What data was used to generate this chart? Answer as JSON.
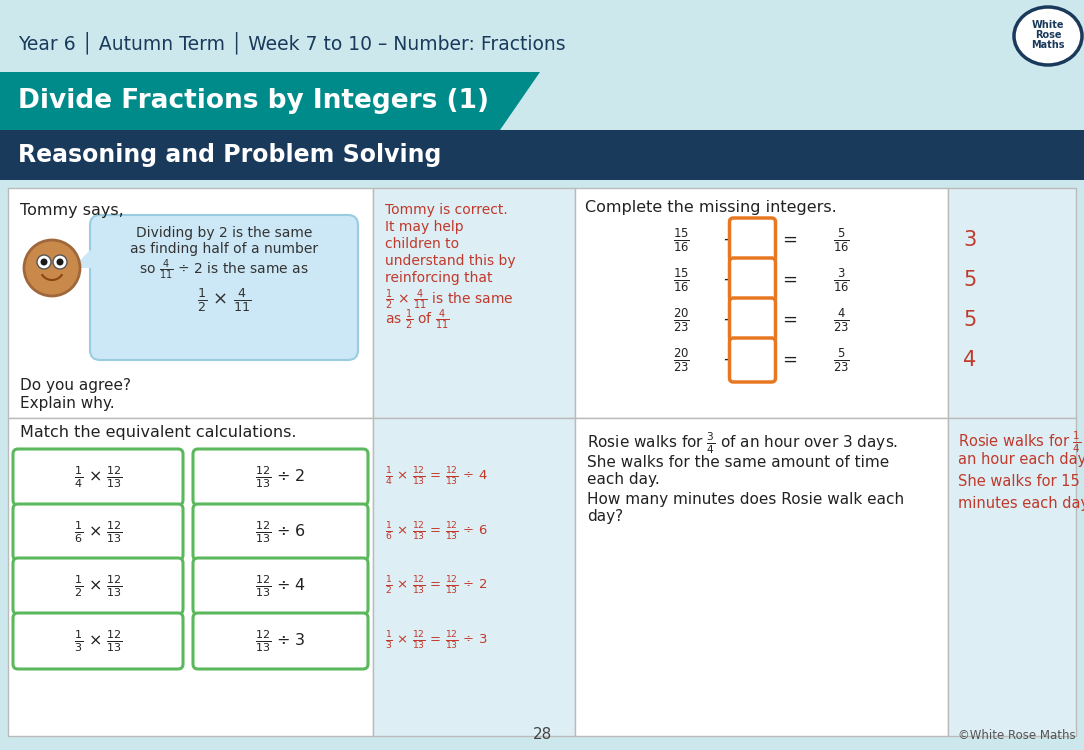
{
  "header_bg": "#cde8ed",
  "header_text": "Year 6 │ Autumn Term │ Week 7 to 10 – Number: Fractions",
  "header_text_color": "#1a3a5c",
  "title_bg": "#008b8b",
  "title_text": "Divide Fractions by Integers (1)",
  "title_text_color": "#ffffff",
  "subtitle_bg": "#1a3a5c",
  "subtitle_text": "Reasoning and Problem Solving",
  "subtitle_text_color": "#ffffff",
  "body_bg": "#ffffff",
  "answer_bg": "#deeef5",
  "answer_color": "#c0392b",
  "green_box_color": "#5cb85c",
  "orange_box_color": "#e87722",
  "page_number": "28",
  "grid_line_color": "#bbbbbb",
  "content_bg": "#f5f5f5"
}
